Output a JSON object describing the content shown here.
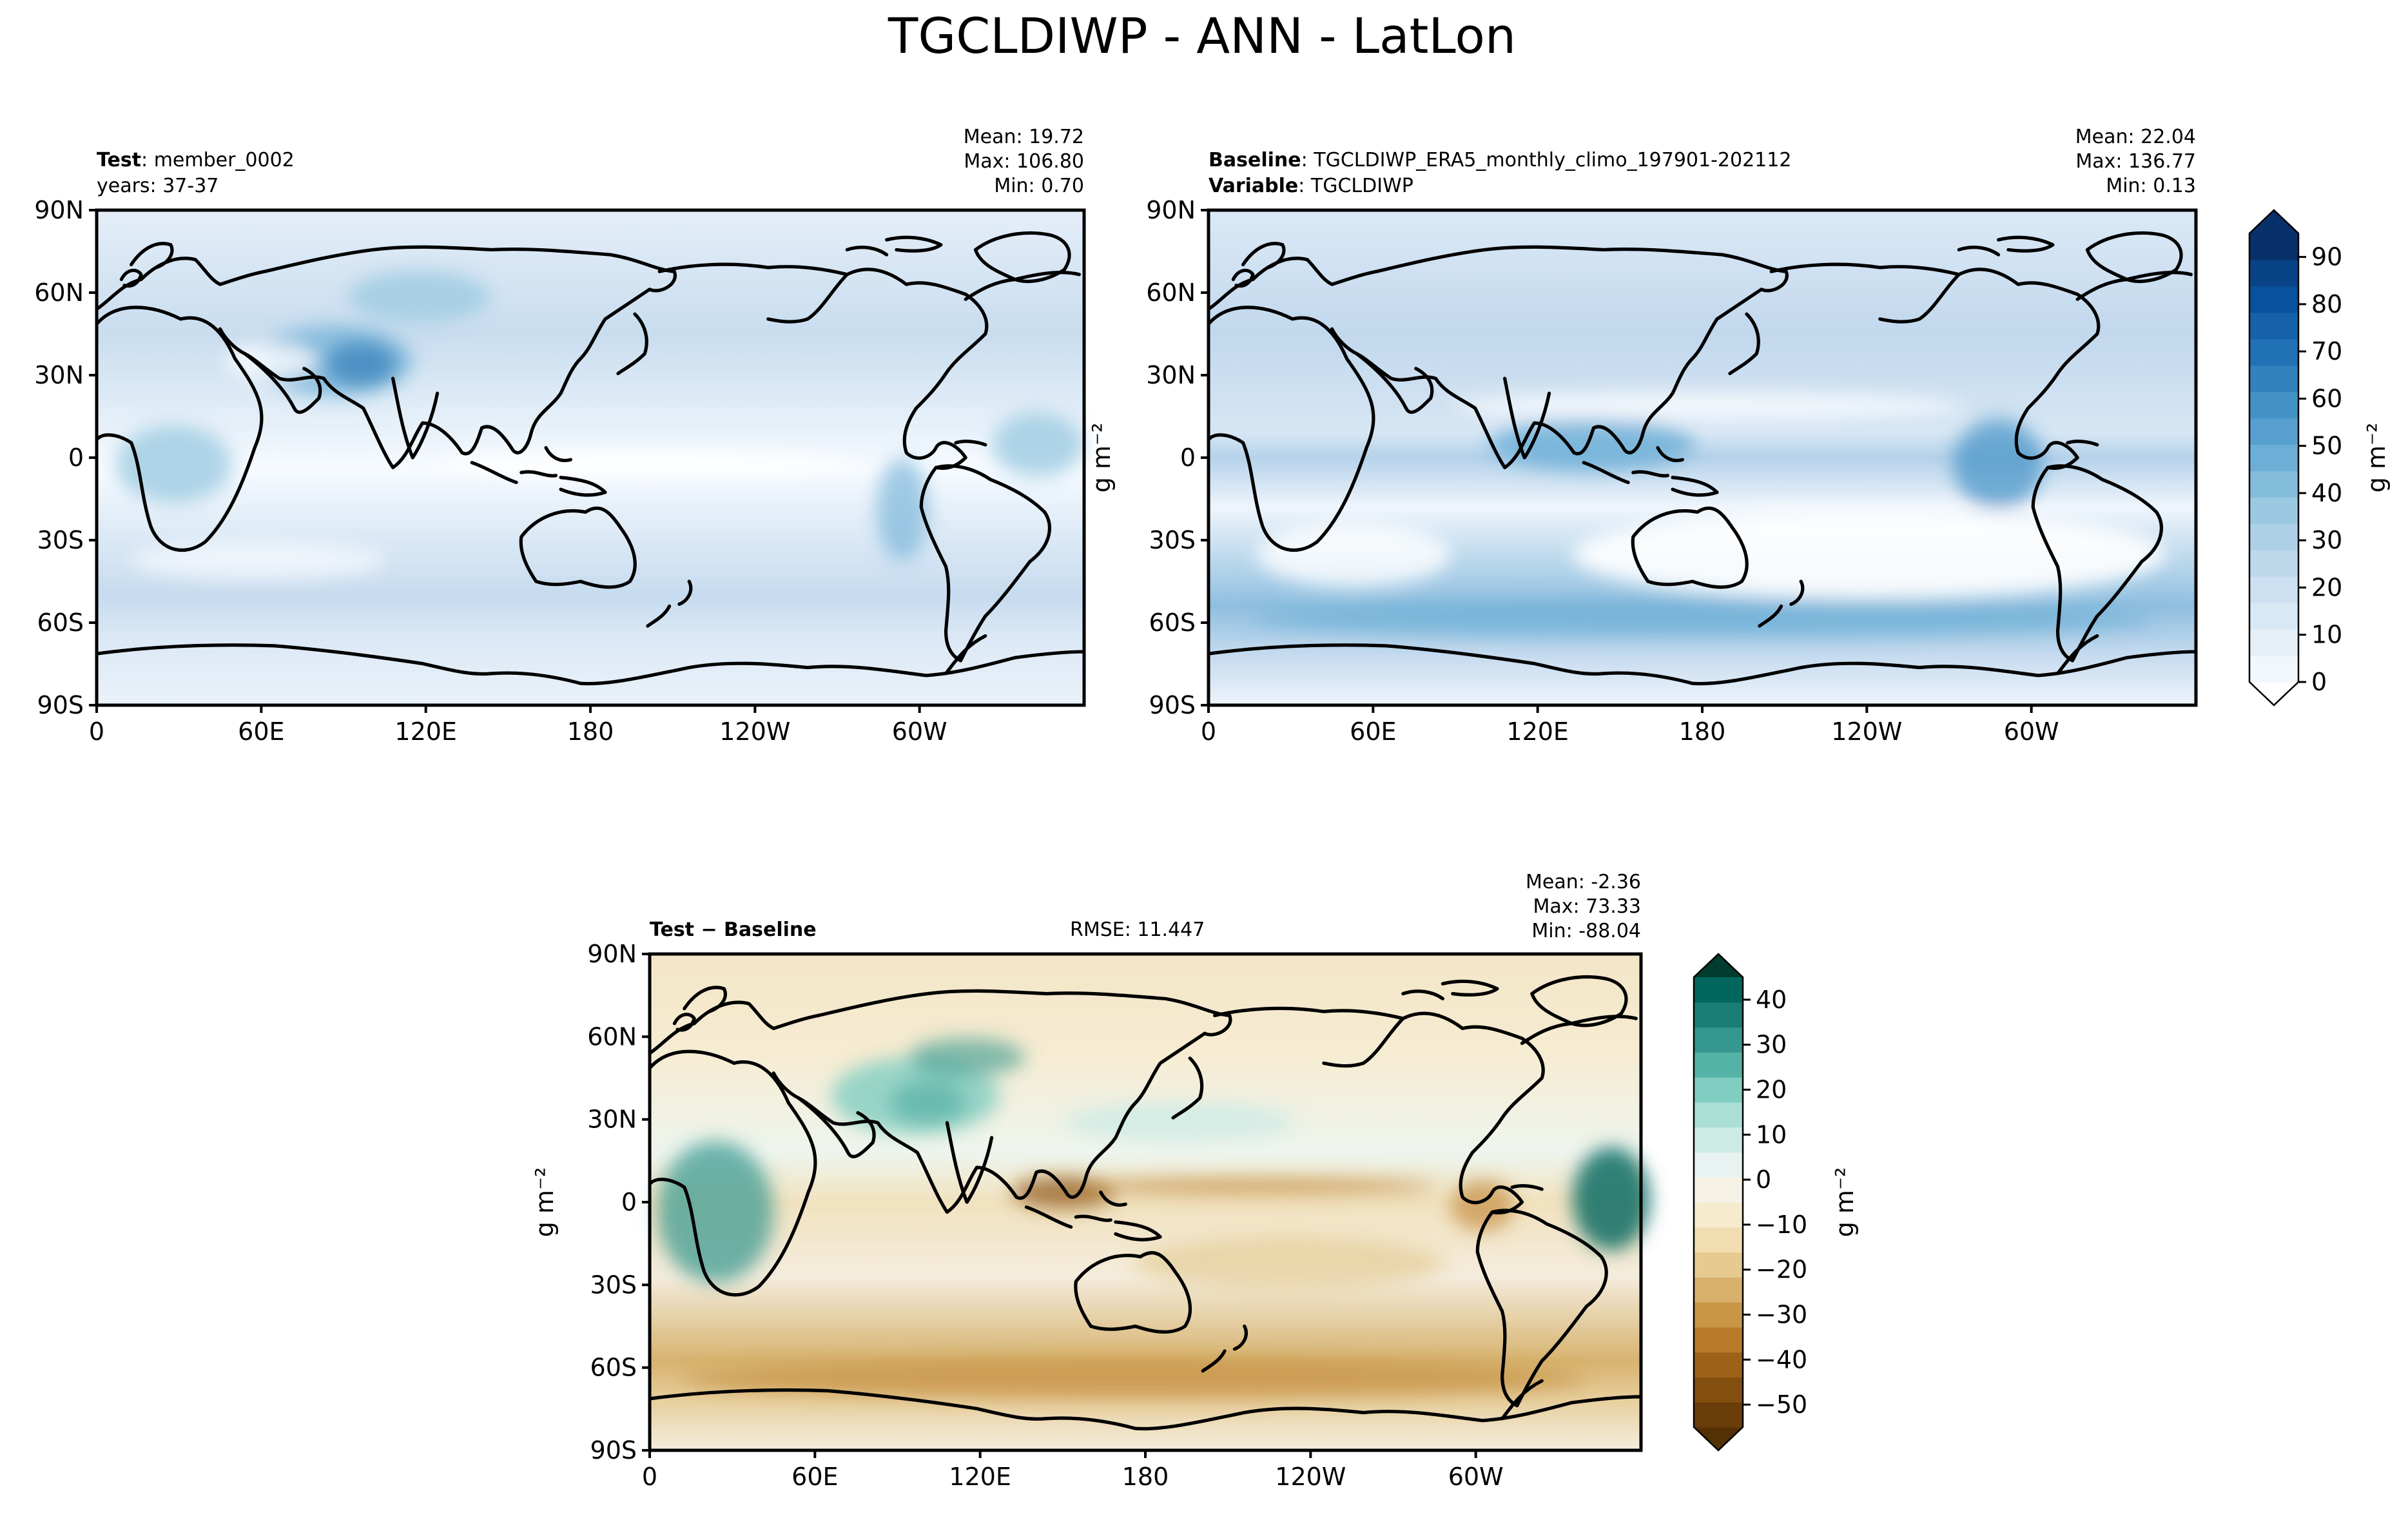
{
  "title": "TGCLDIWP - ANN - LatLon",
  "chart_data": [
    {
      "type": "heatmap",
      "panel": "test",
      "label_bold": "Test",
      "label_text": "member_0002",
      "label_line2": "years: 37-37",
      "stats": [
        "Mean: 19.72",
        "Max: 106.80",
        "Min:  0.70"
      ],
      "mean": 19.72,
      "max": 106.8,
      "min": 0.7,
      "colormap": "Blues",
      "x_ticks": [
        "0",
        "60E",
        "120E",
        "180",
        "120W",
        "60W"
      ],
      "y_ticks": [
        "90N",
        "60N",
        "30N",
        "0",
        "30S",
        "60S",
        "90S"
      ],
      "xlim": [
        0,
        360
      ],
      "ylim": [
        -90,
        90
      ]
    },
    {
      "type": "heatmap",
      "panel": "baseline",
      "label_bold": "Baseline",
      "label_text": "TGCLDIWP_ERA5_monthly_climo_197901-202112",
      "label2_bold": "Variable",
      "label2_text": "TGCLDIWP",
      "stats": [
        "Mean: 22.04",
        "Max: 136.77",
        "Min:  0.13"
      ],
      "mean": 22.04,
      "max": 136.77,
      "min": 0.13,
      "colormap": "Blues",
      "ylabel": "g m⁻²",
      "x_ticks": [
        "0",
        "60E",
        "120E",
        "180",
        "120W",
        "60W"
      ],
      "y_ticks": [
        "90N",
        "60N",
        "30N",
        "0",
        "30S",
        "60S",
        "90S"
      ],
      "xlim": [
        0,
        360
      ],
      "ylim": [
        -90,
        90
      ]
    },
    {
      "type": "heatmap",
      "panel": "diff",
      "label_bold": "Test − Baseline",
      "rmse": "RMSE: 11.447",
      "stats": [
        "Mean: -2.36",
        "Max: 73.33",
        "Min: -88.04"
      ],
      "mean": -2.36,
      "max": 73.33,
      "min": -88.04,
      "colormap": "BrBG",
      "ylabel": "g m⁻²",
      "x_ticks": [
        "0",
        "60E",
        "120E",
        "180",
        "120W",
        "60W"
      ],
      "y_ticks": [
        "90N",
        "60N",
        "30N",
        "0",
        "30S",
        "60S",
        "90S"
      ],
      "xlim": [
        0,
        360
      ],
      "ylim": [
        -90,
        90
      ]
    }
  ],
  "colorbars": {
    "top": {
      "label": "g m⁻²",
      "ticks": [
        "90",
        "80",
        "70",
        "60",
        "50",
        "40",
        "30",
        "20",
        "10",
        "0"
      ],
      "values": [
        90,
        80,
        70,
        60,
        50,
        40,
        30,
        20,
        10,
        0
      ],
      "range": [
        0,
        95
      ],
      "colors": [
        "#ffffff",
        "#f2f7fd",
        "#e6f0f9",
        "#d9e8f5",
        "#cde0f1",
        "#bed8ec",
        "#add0e6",
        "#9cc9e2",
        "#84bcdb",
        "#6caed6",
        "#579fce",
        "#4292c6",
        "#3282be",
        "#2171b5",
        "#1662aa",
        "#08519c",
        "#084388",
        "#08306b",
        "#08306b"
      ]
    },
    "bottom": {
      "label": "g m⁻²",
      "ticks": [
        "40",
        "30",
        "20",
        "10",
        "0",
        "−10",
        "−20",
        "−30",
        "−40",
        "−50"
      ],
      "values": [
        40,
        30,
        20,
        10,
        0,
        -10,
        -20,
        -30,
        -40,
        -50
      ],
      "range": [
        -55,
        45
      ],
      "colors": [
        "#543005",
        "#6b3d0a",
        "#834f0f",
        "#9d6118",
        "#b77a2a",
        "#c99547",
        "#d8b06b",
        "#e6ca8f",
        "#f1ddb0",
        "#f6ebcf",
        "#f5f2e5",
        "#e8f3f1",
        "#cdebe5",
        "#aadfd6",
        "#80cdc1",
        "#54b2a6",
        "#35978f",
        "#1b7d75",
        "#01665e",
        "#003c30"
      ]
    }
  }
}
